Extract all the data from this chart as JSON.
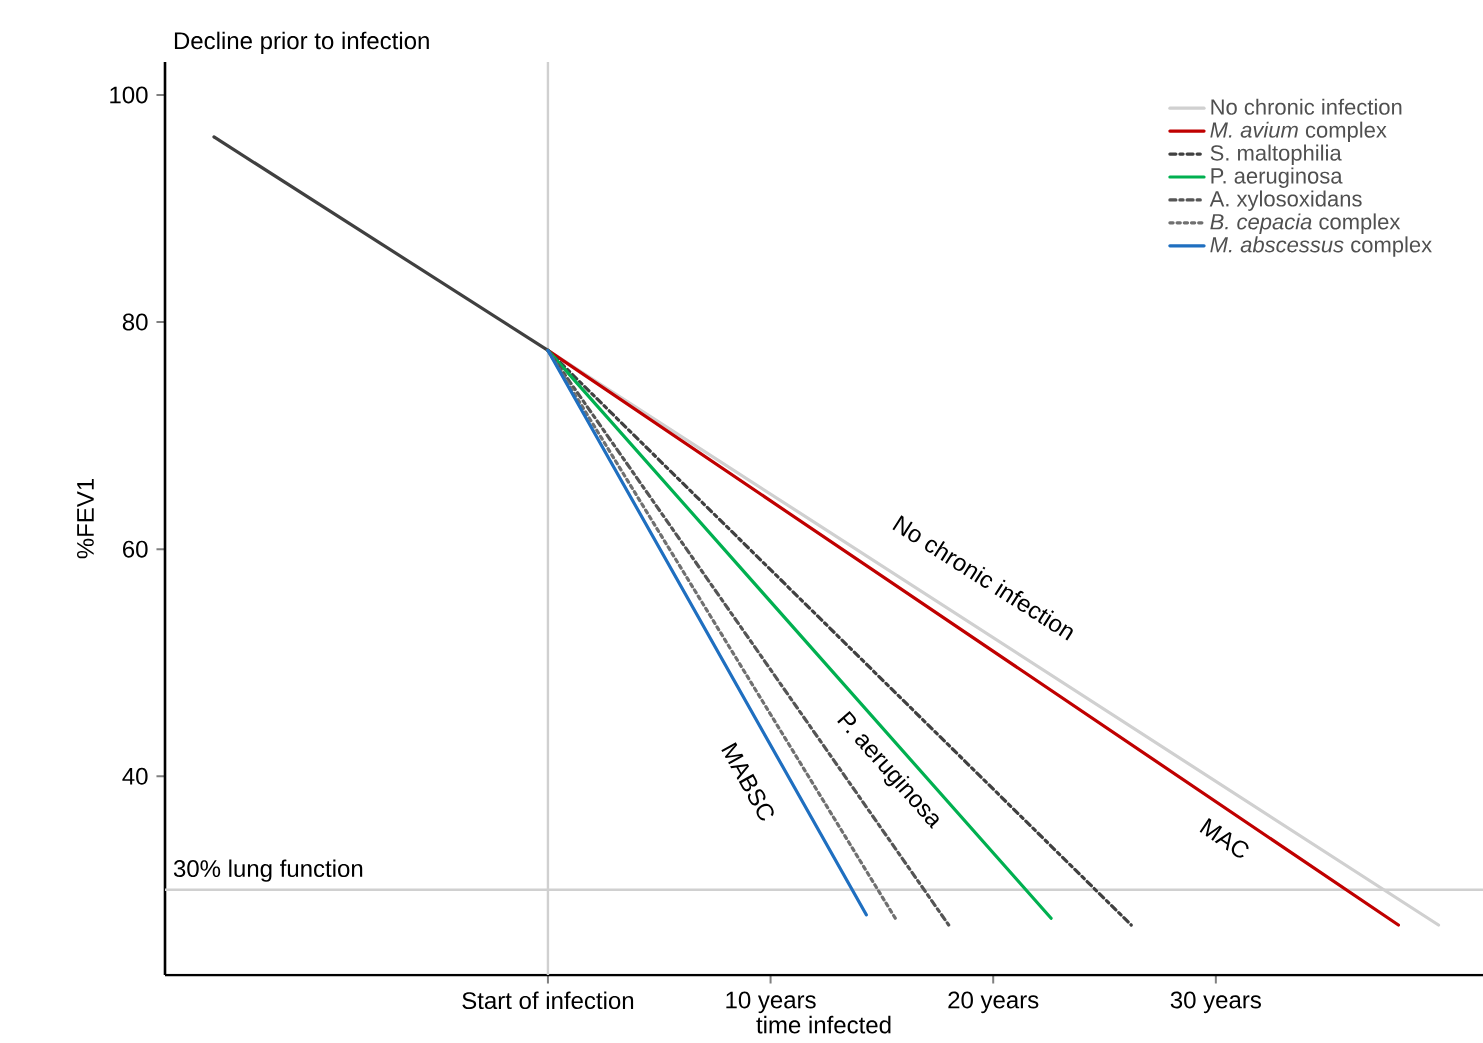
{
  "chart_data": {
    "type": "line",
    "xlabel": "time infected",
    "ylabel": "%FEV1",
    "xlim": [
      -17.2,
      42
    ],
    "ylim": [
      22.5,
      102.9
    ],
    "xticks": [
      {
        "value": 0,
        "label": "Start of infection"
      },
      {
        "value": 10,
        "label": "10 years"
      },
      {
        "value": 20,
        "label": "20 years"
      },
      {
        "value": 30,
        "label": "30 years"
      }
    ],
    "yticks": [
      40,
      60,
      80,
      100
    ],
    "legend": "top right",
    "grid": false,
    "series": [
      {
        "color": "#404040",
        "line_style": "solid",
        "x": [
          -15.0,
          0
        ],
        "values": [
          96.3,
          77.5
        ]
      },
      {
        "name": "No chronic infection",
        "color": "#d0d0d0",
        "line_style": "solid",
        "x": [
          0,
          40.0
        ],
        "values": [
          77.5,
          26.9
        ]
      },
      {
        "name": "*M. avium* complex",
        "color": "#c00000",
        "line_style": "solid",
        "x": [
          0,
          38.2
        ],
        "values": [
          77.5,
          26.9
        ]
      },
      {
        "name": "S. maltophilia",
        "color": "#404040",
        "line_style": "dashdot",
        "x": [
          0,
          26.2
        ],
        "values": [
          77.5,
          26.9
        ]
      },
      {
        "name": "P. aeruginosa",
        "color": "#00b050",
        "line_style": "solid",
        "x": [
          0,
          22.6
        ],
        "values": [
          77.5,
          27.5
        ]
      },
      {
        "name": "A. xylosoxidans",
        "color": "#555555",
        "line_style": "dashdot",
        "x": [
          0,
          18.0
        ],
        "values": [
          77.5,
          26.9
        ]
      },
      {
        "name": "*B. cepacia* complex",
        "color": "#707070",
        "line_style": "dotted",
        "x": [
          0,
          15.6
        ],
        "values": [
          77.5,
          27.5
        ]
      },
      {
        "name": "*M. abscessus* complex",
        "color": "#1f6fc0",
        "line_style": "solid",
        "x": [
          0,
          14.3
        ],
        "values": [
          77.5,
          27.8
        ]
      }
    ],
    "ref_lines": [
      {
        "axis": "y",
        "value": 30,
        "label": "30% lung function",
        "color": "#d0d0d0"
      },
      {
        "axis": "x",
        "value": 0,
        "color": "#d0d0d0"
      }
    ],
    "annotations": [
      "Decline prior to infection",
      "No chronic infection",
      "P. aeruginosa",
      "MABSC",
      "MAC"
    ]
  }
}
